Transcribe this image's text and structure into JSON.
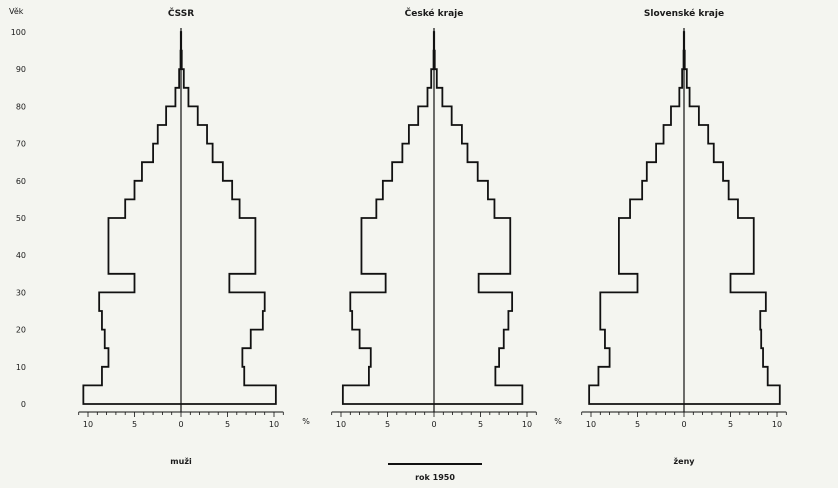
{
  "chart_data": {
    "type": "population-pyramid",
    "yaxis_label": "Věk",
    "y_ticks": [
      0,
      10,
      20,
      30,
      40,
      50,
      60,
      70,
      80,
      90,
      100
    ],
    "x_ticks": [
      "10",
      "5",
      "0",
      "5",
      "10"
    ],
    "x_unit": "%",
    "ylim": [
      0,
      100
    ],
    "xlim": [
      -10,
      10
    ],
    "left_label": "muži",
    "right_label": "ženy",
    "legend_label": "rok 1950",
    "age_groups": [
      "0-4",
      "5-9",
      "10-14",
      "15-19",
      "20-24",
      "25-29",
      "30-34",
      "35-39",
      "40-44",
      "45-49",
      "50-54",
      "55-59",
      "60-64",
      "65-69",
      "70-74",
      "75-79",
      "80-84",
      "85-89",
      "90-94",
      "95-99"
    ],
    "panels": [
      {
        "title": "ČSSR",
        "male": [
          10.5,
          8.5,
          7.8,
          8.2,
          8.5,
          8.8,
          5.0,
          7.8,
          7.8,
          7.8,
          6.0,
          5.0,
          4.2,
          3.0,
          2.5,
          1.6,
          0.6,
          0.2,
          0.05,
          0.02
        ],
        "female": [
          10.2,
          6.8,
          6.6,
          7.5,
          8.8,
          9.0,
          5.2,
          8.0,
          8.0,
          8.0,
          6.3,
          5.5,
          4.5,
          3.4,
          2.8,
          1.8,
          0.8,
          0.3,
          0.08,
          0.02
        ]
      },
      {
        "title": "České kraje",
        "male": [
          9.8,
          7.0,
          6.8,
          8.0,
          8.8,
          9.0,
          5.2,
          7.8,
          7.8,
          7.8,
          6.2,
          5.5,
          4.5,
          3.4,
          2.7,
          1.7,
          0.7,
          0.3,
          0.05,
          0.02
        ],
        "female": [
          9.5,
          6.6,
          7.0,
          7.5,
          8.0,
          8.4,
          4.8,
          8.2,
          8.2,
          8.2,
          6.5,
          5.8,
          4.7,
          3.6,
          3.0,
          1.9,
          0.9,
          0.3,
          0.08,
          0.02
        ]
      },
      {
        "title": "Slovenské kraje",
        "male": [
          10.2,
          9.2,
          8.0,
          8.5,
          9.0,
          9.0,
          5.0,
          7.0,
          7.0,
          7.0,
          5.8,
          4.5,
          4.0,
          3.0,
          2.2,
          1.4,
          0.5,
          0.2,
          0.05,
          0.02
        ],
        "female": [
          10.3,
          9.0,
          8.5,
          8.3,
          8.2,
          8.8,
          5.0,
          7.5,
          7.5,
          7.5,
          5.8,
          4.8,
          4.2,
          3.2,
          2.6,
          1.6,
          0.6,
          0.3,
          0.08,
          0.02
        ]
      }
    ]
  }
}
